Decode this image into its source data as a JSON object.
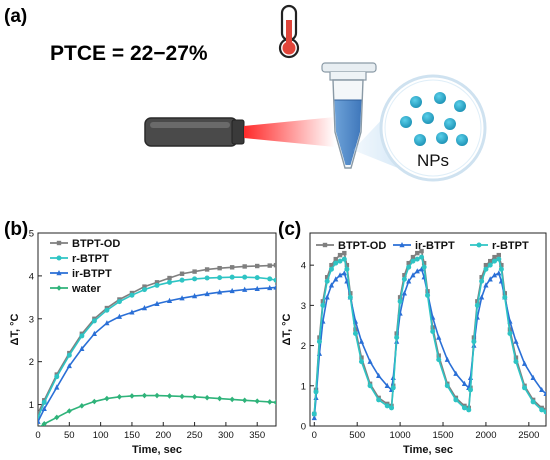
{
  "panels": {
    "a": {
      "label": "(a)",
      "ptce_text": "PTCE = 22−27%",
      "nps_label": "NPs",
      "icons": [
        "thermometer-icon",
        "laser-pointer-icon",
        "eppendorf-tube-icon",
        "nanoparticle-zoom-icon"
      ]
    },
    "b": {
      "label": "(b)"
    },
    "c": {
      "label": "(c)"
    }
  },
  "colors": {
    "BTPT-OD": "#7f7f7f",
    "r-BTPT": "#2ec4c4",
    "ir-BTPT": "#2a6fd6",
    "water": "#2fb37a",
    "thermometer_bulb": "#e0453a",
    "laser_beam": "#ff2a2a",
    "tube_liquid": "#4a86c8",
    "np_dot": "#23a7c9"
  },
  "chart_data": [
    {
      "id": "b",
      "type": "line",
      "xlabel": "Time, sec",
      "ylabel": "ΔT, °C",
      "xlim": [
        0,
        380
      ],
      "ylim": [
        0.5,
        5
      ],
      "xticks": [
        "0",
        "50",
        "100",
        "150",
        "200",
        "250",
        "300",
        "350"
      ],
      "yticks": [
        "1",
        "2",
        "3",
        "4",
        "5"
      ],
      "legend": "top-left",
      "series": [
        {
          "name": "BTPT-OD",
          "marker": "square",
          "x": [
            0,
            10,
            30,
            50,
            70,
            90,
            110,
            130,
            150,
            170,
            190,
            210,
            230,
            250,
            270,
            290,
            310,
            330,
            350,
            370,
            380
          ],
          "y": [
            0.8,
            1.1,
            1.7,
            2.2,
            2.65,
            3.0,
            3.25,
            3.45,
            3.6,
            3.75,
            3.85,
            3.95,
            4.05,
            4.1,
            4.15,
            4.18,
            4.2,
            4.22,
            4.23,
            4.24,
            4.25
          ]
        },
        {
          "name": "r-BTPT",
          "marker": "circle",
          "x": [
            0,
            10,
            30,
            50,
            70,
            90,
            110,
            130,
            150,
            170,
            190,
            210,
            230,
            250,
            270,
            290,
            310,
            330,
            350,
            370,
            380
          ],
          "y": [
            0.7,
            1.05,
            1.65,
            2.15,
            2.6,
            2.95,
            3.2,
            3.4,
            3.55,
            3.68,
            3.78,
            3.85,
            3.9,
            3.93,
            3.95,
            3.96,
            3.97,
            3.97,
            3.96,
            3.93,
            3.9
          ]
        },
        {
          "name": "ir-BTPT",
          "marker": "triangle",
          "x": [
            0,
            10,
            30,
            50,
            70,
            90,
            110,
            130,
            150,
            170,
            190,
            210,
            230,
            250,
            270,
            290,
            310,
            330,
            350,
            370,
            380
          ],
          "y": [
            0.6,
            0.9,
            1.4,
            1.9,
            2.3,
            2.65,
            2.9,
            3.05,
            3.15,
            3.25,
            3.35,
            3.42,
            3.48,
            3.53,
            3.58,
            3.62,
            3.65,
            3.68,
            3.7,
            3.72,
            3.73
          ]
        },
        {
          "name": "water",
          "marker": "diamond",
          "x": [
            0,
            10,
            30,
            50,
            70,
            90,
            110,
            130,
            150,
            170,
            190,
            210,
            230,
            250,
            270,
            290,
            310,
            330,
            350,
            370,
            380
          ],
          "y": [
            0.45,
            0.55,
            0.7,
            0.85,
            0.97,
            1.07,
            1.14,
            1.18,
            1.2,
            1.21,
            1.21,
            1.2,
            1.19,
            1.18,
            1.16,
            1.14,
            1.12,
            1.1,
            1.08,
            1.06,
            1.05
          ]
        }
      ]
    },
    {
      "id": "c",
      "type": "line",
      "xlabel": "Time, sec",
      "ylabel": "ΔT, °C",
      "xlim": [
        -50,
        2700
      ],
      "ylim": [
        0,
        4.8
      ],
      "xticks": [
        "0",
        "500",
        "1000",
        "1500",
        "2000",
        "2500"
      ],
      "yticks": [
        "0",
        "1",
        "2",
        "3",
        "4"
      ],
      "legend": "top",
      "series": [
        {
          "name": "BTPT-OD",
          "marker": "square",
          "x": [
            0,
            20,
            60,
            100,
            150,
            200,
            250,
            300,
            350,
            380,
            420,
            480,
            550,
            650,
            750,
            850,
            900,
            920,
            960,
            1000,
            1050,
            1100,
            1150,
            1200,
            1250,
            1280,
            1320,
            1380,
            1450,
            1550,
            1650,
            1750,
            1800,
            1820,
            1860,
            1900,
            1950,
            2000,
            2050,
            2100,
            2150,
            2180,
            2220,
            2280,
            2350,
            2450,
            2550,
            2650,
            2700
          ],
          "y": [
            0.3,
            0.9,
            2.2,
            3.1,
            3.7,
            4.0,
            4.15,
            4.25,
            4.3,
            4.0,
            3.3,
            2.4,
            1.7,
            1.05,
            0.7,
            0.55,
            0.5,
            1.0,
            2.3,
            3.2,
            3.75,
            4.05,
            4.2,
            4.3,
            4.35,
            4.05,
            3.35,
            2.45,
            1.75,
            1.05,
            0.7,
            0.5,
            0.45,
            0.95,
            2.2,
            3.1,
            3.7,
            4.0,
            4.1,
            4.2,
            4.25,
            4.0,
            3.3,
            2.4,
            1.7,
            1.0,
            0.65,
            0.45,
            0.4
          ]
        },
        {
          "name": "ir-BTPT",
          "marker": "triangle",
          "x": [
            0,
            20,
            60,
            100,
            150,
            200,
            250,
            300,
            350,
            380,
            420,
            480,
            550,
            650,
            750,
            850,
            900,
            920,
            960,
            1000,
            1050,
            1100,
            1150,
            1200,
            1250,
            1280,
            1320,
            1380,
            1450,
            1550,
            1650,
            1750,
            1800,
            1820,
            1860,
            1900,
            1950,
            2000,
            2050,
            2100,
            2150,
            2180,
            2220,
            2280,
            2350,
            2450,
            2550,
            2650,
            2700
          ],
          "y": [
            0.2,
            0.7,
            1.8,
            2.6,
            3.2,
            3.5,
            3.65,
            3.75,
            3.8,
            3.6,
            3.2,
            2.6,
            2.1,
            1.6,
            1.25,
            1.0,
            0.9,
            1.2,
            2.1,
            2.8,
            3.3,
            3.6,
            3.75,
            3.85,
            3.9,
            3.7,
            3.3,
            2.7,
            2.2,
            1.65,
            1.3,
            1.05,
            0.95,
            1.2,
            2.0,
            2.7,
            3.2,
            3.5,
            3.65,
            3.75,
            3.8,
            3.6,
            3.2,
            2.6,
            2.1,
            1.55,
            1.2,
            0.9,
            0.8
          ]
        },
        {
          "name": "r-BTPT",
          "marker": "circle",
          "x": [
            0,
            20,
            60,
            100,
            150,
            200,
            250,
            300,
            350,
            380,
            420,
            480,
            550,
            650,
            750,
            850,
            900,
            920,
            960,
            1000,
            1050,
            1100,
            1150,
            1200,
            1250,
            1280,
            1320,
            1380,
            1450,
            1550,
            1650,
            1750,
            1800,
            1820,
            1860,
            1900,
            1950,
            2000,
            2050,
            2100,
            2150,
            2180,
            2220,
            2280,
            2350,
            2450,
            2550,
            2650,
            2700
          ],
          "y": [
            0.3,
            0.85,
            2.1,
            3.0,
            3.6,
            3.9,
            4.05,
            4.1,
            4.15,
            3.9,
            3.2,
            2.3,
            1.6,
            1.0,
            0.65,
            0.5,
            0.45,
            0.95,
            2.2,
            3.1,
            3.65,
            3.95,
            4.1,
            4.15,
            4.2,
            3.95,
            3.25,
            2.35,
            1.65,
            1.0,
            0.65,
            0.45,
            0.4,
            0.9,
            2.1,
            3.0,
            3.6,
            3.9,
            4.0,
            4.1,
            4.15,
            3.9,
            3.2,
            2.3,
            1.6,
            0.95,
            0.6,
            0.4,
            0.35
          ]
        }
      ]
    }
  ]
}
